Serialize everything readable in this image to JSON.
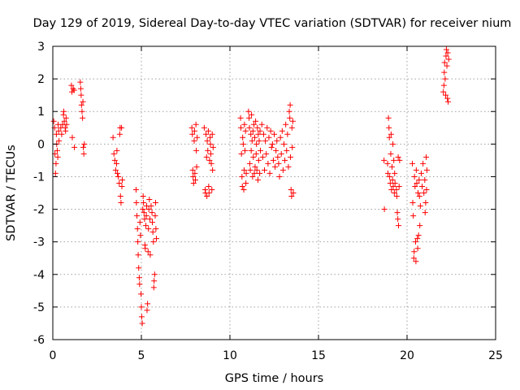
{
  "chart_data": {
    "type": "scatter",
    "title": "Day 129 of 2019, Sidereal Day-to-day VTEC variation (SDTVAR) for receiver nium",
    "xlabel": "GPS time / hours",
    "ylabel": "SDTVAR / TECUs",
    "xlim": [
      0,
      25
    ],
    "ylim": [
      -6,
      3
    ],
    "xticks": [
      0,
      5,
      10,
      15,
      20,
      25
    ],
    "yticks": [
      3,
      2,
      1,
      0,
      -1,
      -2,
      -3,
      -4,
      -5,
      -6
    ],
    "xtick_labels": [
      "0",
      "5",
      "10",
      "15",
      "20",
      "25"
    ],
    "ytick_labels": [
      "3",
      "2",
      "1",
      "0",
      "-1",
      "-2",
      "-3",
      "-4",
      "-5",
      "-6"
    ],
    "grid": true,
    "marker": "+",
    "color": "#ff0000",
    "series": [
      {
        "name": "SDTVAR",
        "points": [
          [
            0.05,
            0.7
          ],
          [
            0.1,
            0.5
          ],
          [
            0.12,
            -0.3
          ],
          [
            0.15,
            -0.9
          ],
          [
            0.18,
            -0.6
          ],
          [
            0.2,
            0.3
          ],
          [
            0.22,
            0.0
          ],
          [
            0.25,
            -0.2
          ],
          [
            0.28,
            -0.4
          ],
          [
            0.3,
            0.6
          ],
          [
            0.33,
            0.4
          ],
          [
            0.35,
            0.1
          ],
          [
            0.45,
            0.5
          ],
          [
            0.5,
            0.3
          ],
          [
            0.55,
            0.6
          ],
          [
            0.6,
            0.9
          ],
          [
            0.62,
            1.0
          ],
          [
            0.65,
            0.7
          ],
          [
            0.7,
            0.5
          ],
          [
            0.72,
            0.4
          ],
          [
            0.75,
            0.8
          ],
          [
            0.78,
            0.6
          ],
          [
            1.05,
            1.8
          ],
          [
            1.08,
            1.6
          ],
          [
            1.1,
            0.2
          ],
          [
            1.15,
            1.7
          ],
          [
            1.2,
            1.65
          ],
          [
            1.22,
            -0.1
          ],
          [
            1.55,
            1.9
          ],
          [
            1.58,
            1.7
          ],
          [
            1.6,
            1.5
          ],
          [
            1.62,
            1.2
          ],
          [
            1.65,
            1.0
          ],
          [
            1.68,
            0.8
          ],
          [
            1.7,
            1.3
          ],
          [
            1.72,
            -0.1
          ],
          [
            1.75,
            -0.3
          ],
          [
            1.78,
            0.0
          ],
          [
            3.4,
            0.2
          ],
          [
            3.45,
            -0.3
          ],
          [
            3.5,
            -0.5
          ],
          [
            3.55,
            -0.8
          ],
          [
            3.6,
            -0.6
          ],
          [
            3.62,
            -0.2
          ],
          [
            3.65,
            -0.9
          ],
          [
            3.7,
            -1.0
          ],
          [
            3.75,
            -1.2
          ],
          [
            3.78,
            0.3
          ],
          [
            3.8,
            0.5
          ],
          [
            3.82,
            -1.6
          ],
          [
            3.85,
            -1.8
          ],
          [
            3.88,
            0.5
          ],
          [
            3.9,
            -1.3
          ],
          [
            3.92,
            -1.1
          ],
          [
            4.7,
            -1.4
          ],
          [
            4.72,
            -1.8
          ],
          [
            4.75,
            -2.2
          ],
          [
            4.78,
            -2.6
          ],
          [
            4.8,
            -3.0
          ],
          [
            4.82,
            -3.4
          ],
          [
            4.85,
            -3.8
          ],
          [
            4.88,
            -4.1
          ],
          [
            4.9,
            -4.3
          ],
          [
            4.92,
            -2.4
          ],
          [
            4.95,
            -2.8
          ],
          [
            4.98,
            -4.6
          ],
          [
            5.0,
            -5.0
          ],
          [
            5.02,
            -5.3
          ],
          [
            5.05,
            -5.5
          ],
          [
            5.08,
            -2.0
          ],
          [
            5.1,
            -1.6
          ],
          [
            5.12,
            -1.8
          ],
          [
            5.15,
            -2.1
          ],
          [
            5.18,
            -2.3
          ],
          [
            5.2,
            -3.1
          ],
          [
            5.22,
            -3.2
          ],
          [
            5.25,
            -2.5
          ],
          [
            5.28,
            -2.2
          ],
          [
            5.3,
            -1.9
          ],
          [
            5.32,
            -5.1
          ],
          [
            5.35,
            -4.9
          ],
          [
            5.38,
            -3.3
          ],
          [
            5.4,
            -2.6
          ],
          [
            5.42,
            -2.0
          ],
          [
            5.45,
            -1.7
          ],
          [
            5.48,
            -2.3
          ],
          [
            5.5,
            -3.4
          ],
          [
            5.55,
            -1.9
          ],
          [
            5.6,
            -2.1
          ],
          [
            5.62,
            -2.4
          ],
          [
            5.65,
            -2.7
          ],
          [
            5.68,
            -3.0
          ],
          [
            5.7,
            -4.4
          ],
          [
            5.72,
            -4.2
          ],
          [
            5.75,
            -4.0
          ],
          [
            5.78,
            -2.2
          ],
          [
            5.8,
            -1.8
          ],
          [
            5.82,
            -2.6
          ],
          [
            5.85,
            -2.9
          ],
          [
            7.85,
            0.5
          ],
          [
            7.88,
            0.3
          ],
          [
            7.9,
            -0.8
          ],
          [
            7.92,
            -1.0
          ],
          [
            7.95,
            -1.2
          ],
          [
            7.98,
            0.1
          ],
          [
            8.0,
            0.4
          ],
          [
            8.02,
            -0.9
          ],
          [
            8.05,
            -1.1
          ],
          [
            8.08,
            0.6
          ],
          [
            8.1,
            -0.2
          ],
          [
            8.12,
            -0.7
          ],
          [
            8.15,
            0.2
          ],
          [
            8.55,
            0.5
          ],
          [
            8.6,
            -1.4
          ],
          [
            8.62,
            -1.5
          ],
          [
            8.65,
            0.3
          ],
          [
            8.68,
            -0.4
          ],
          [
            8.7,
            -1.6
          ],
          [
            8.72,
            0.1
          ],
          [
            8.75,
            -0.2
          ],
          [
            8.78,
            0.4
          ],
          [
            8.8,
            -1.3
          ],
          [
            8.82,
            -1.5
          ],
          [
            8.85,
            -0.5
          ],
          [
            8.88,
            0.2
          ],
          [
            8.9,
            0.0
          ],
          [
            8.92,
            -0.3
          ],
          [
            8.95,
            -0.6
          ],
          [
            8.98,
            -1.4
          ],
          [
            9.0,
            0.3
          ],
          [
            9.02,
            -0.8
          ],
          [
            9.05,
            -0.1
          ],
          [
            10.6,
            0.8
          ],
          [
            10.62,
            0.5
          ],
          [
            10.65,
            -0.3
          ],
          [
            10.68,
            -1.0
          ],
          [
            10.7,
            -1.3
          ],
          [
            10.72,
            0.2
          ],
          [
            10.75,
            0.0
          ],
          [
            10.78,
            -1.4
          ],
          [
            10.8,
            -0.8
          ],
          [
            10.82,
            0.6
          ],
          [
            10.85,
            -0.2
          ],
          [
            10.88,
            0.4
          ],
          [
            10.9,
            -1.2
          ],
          [
            10.92,
            -0.9
          ],
          [
            11.05,
            1.0
          ],
          [
            11.08,
            0.8
          ],
          [
            11.1,
            0.5
          ],
          [
            11.12,
            -0.6
          ],
          [
            11.15,
            -0.8
          ],
          [
            11.18,
            0.3
          ],
          [
            11.2,
            -0.2
          ],
          [
            11.22,
            0.9
          ],
          [
            11.25,
            0.1
          ],
          [
            11.28,
            -1.0
          ],
          [
            11.3,
            0.4
          ],
          [
            11.32,
            -0.4
          ],
          [
            11.35,
            0.6
          ],
          [
            11.38,
            -0.9
          ],
          [
            11.4,
            0.2
          ],
          [
            11.42,
            -0.7
          ],
          [
            11.45,
            0.7
          ],
          [
            11.48,
            -0.3
          ],
          [
            11.5,
            0.0
          ],
          [
            11.52,
            -0.8
          ],
          [
            11.55,
            0.5
          ],
          [
            11.58,
            -1.1
          ],
          [
            11.6,
            0.3
          ],
          [
            11.62,
            -0.5
          ],
          [
            11.65,
            0.1
          ],
          [
            11.68,
            -0.9
          ],
          [
            11.7,
            0.4
          ],
          [
            11.72,
            -0.2
          ],
          [
            11.8,
            0.6
          ],
          [
            11.85,
            -0.4
          ],
          [
            11.9,
            0.3
          ],
          [
            11.95,
            -0.8
          ],
          [
            12.0,
            0.1
          ],
          [
            12.05,
            -0.3
          ],
          [
            12.1,
            0.5
          ],
          [
            12.15,
            -0.6
          ],
          [
            12.2,
            0.2
          ],
          [
            12.25,
            -0.9
          ],
          [
            12.3,
            0.4
          ],
          [
            12.35,
            -0.1
          ],
          [
            12.4,
            0.0
          ],
          [
            12.45,
            -0.5
          ],
          [
            12.5,
            0.3
          ],
          [
            12.55,
            -0.7
          ],
          [
            12.6,
            -0.2
          ],
          [
            12.65,
            0.1
          ],
          [
            12.7,
            -0.4
          ],
          [
            12.75,
            -0.6
          ],
          [
            12.8,
            -1.0
          ],
          [
            12.85,
            0.2
          ],
          [
            12.9,
            -0.3
          ],
          [
            12.95,
            0.4
          ],
          [
            13.0,
            -0.8
          ],
          [
            13.05,
            0.0
          ],
          [
            13.1,
            -0.5
          ],
          [
            13.15,
            0.6
          ],
          [
            13.2,
            -0.2
          ],
          [
            13.25,
            0.3
          ],
          [
            13.3,
            -0.7
          ],
          [
            13.35,
            1.0
          ],
          [
            13.38,
            0.8
          ],
          [
            13.4,
            1.2
          ],
          [
            13.42,
            -0.4
          ],
          [
            13.45,
            -1.4
          ],
          [
            13.48,
            -1.6
          ],
          [
            13.5,
            0.5
          ],
          [
            13.52,
            -0.1
          ],
          [
            13.55,
            0.7
          ],
          [
            13.58,
            -1.5
          ],
          [
            18.7,
            -0.5
          ],
          [
            18.72,
            -2.0
          ],
          [
            18.9,
            -0.6
          ],
          [
            18.92,
            -0.9
          ],
          [
            18.95,
            0.8
          ],
          [
            18.98,
            0.5
          ],
          [
            19.0,
            0.2
          ],
          [
            19.02,
            -1.0
          ],
          [
            19.05,
            -1.2
          ],
          [
            19.08,
            -0.3
          ],
          [
            19.1,
            0.3
          ],
          [
            19.12,
            -1.4
          ],
          [
            19.15,
            -0.7
          ],
          [
            19.18,
            -1.1
          ],
          [
            19.2,
            0.0
          ],
          [
            19.22,
            -1.3
          ],
          [
            19.25,
            -0.5
          ],
          [
            19.28,
            -1.5
          ],
          [
            19.3,
            -0.9
          ],
          [
            19.32,
            -1.2
          ],
          [
            19.4,
            -1.4
          ],
          [
            19.42,
            -1.6
          ],
          [
            19.45,
            -2.1
          ],
          [
            19.48,
            -2.3
          ],
          [
            19.5,
            -0.4
          ],
          [
            19.52,
            -2.5
          ],
          [
            19.55,
            -1.3
          ],
          [
            19.58,
            -0.5
          ],
          [
            20.3,
            -0.6
          ],
          [
            20.32,
            -1.8
          ],
          [
            20.35,
            -2.2
          ],
          [
            20.38,
            -3.5
          ],
          [
            20.4,
            -3.3
          ],
          [
            20.42,
            -1.0
          ],
          [
            20.45,
            -1.3
          ],
          [
            20.48,
            -3.0
          ],
          [
            20.5,
            -3.6
          ],
          [
            20.52,
            -0.8
          ],
          [
            20.55,
            -1.2
          ],
          [
            20.58,
            -2.9
          ],
          [
            20.6,
            -3.2
          ],
          [
            20.62,
            -1.5
          ],
          [
            20.65,
            -2.8
          ],
          [
            20.68,
            -1.1
          ],
          [
            20.7,
            -1.6
          ],
          [
            20.72,
            -2.5
          ],
          [
            20.75,
            -1.9
          ],
          [
            20.8,
            -0.9
          ],
          [
            20.85,
            -1.3
          ],
          [
            20.9,
            -0.6
          ],
          [
            20.95,
            -1.5
          ],
          [
            21.0,
            -1.1
          ],
          [
            21.02,
            -2.1
          ],
          [
            21.05,
            -1.8
          ],
          [
            21.08,
            -0.4
          ],
          [
            21.1,
            -1.4
          ],
          [
            21.12,
            -0.8
          ],
          [
            22.05,
            1.6
          ],
          [
            22.08,
            1.8
          ],
          [
            22.1,
            2.2
          ],
          [
            22.12,
            2.5
          ],
          [
            22.15,
            2.0
          ],
          [
            22.18,
            1.5
          ],
          [
            22.2,
            2.7
          ],
          [
            22.22,
            2.9
          ],
          [
            22.25,
            2.4
          ],
          [
            22.28,
            1.4
          ],
          [
            22.3,
            2.8
          ],
          [
            22.32,
            1.3
          ],
          [
            22.35,
            2.6
          ]
        ]
      }
    ]
  }
}
